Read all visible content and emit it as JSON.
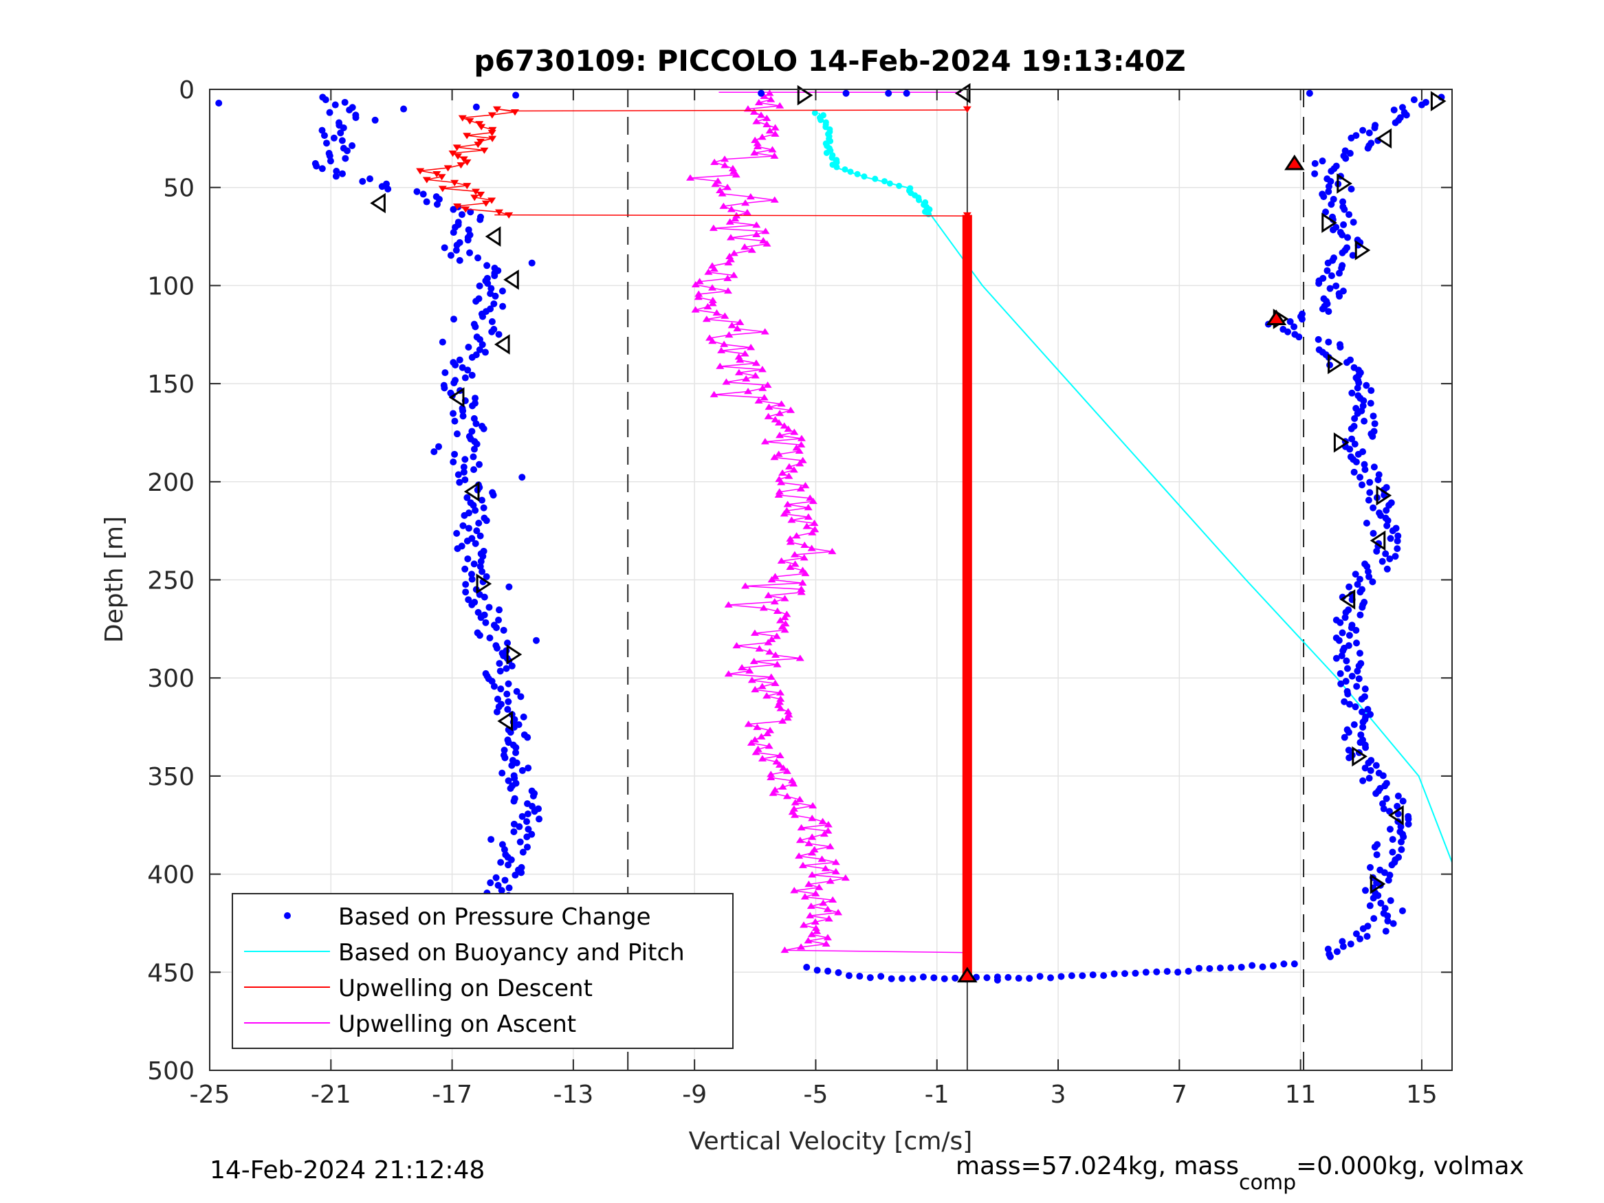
{
  "chart_data": {
    "type": "scatter",
    "title": "p6730109: PICCOLO 14-Feb-2024 19:13:40Z",
    "xlabel": "Vertical Velocity [cm/s]",
    "ylabel": "Depth [m]",
    "xlim": [
      -25,
      16
    ],
    "ylim": [
      0,
      500
    ],
    "y_reversed": true,
    "xticks": [
      -25,
      -21,
      -17,
      -13,
      -9,
      -5,
      -1,
      3,
      7,
      11,
      15
    ],
    "yticks": [
      0,
      50,
      100,
      150,
      200,
      250,
      300,
      350,
      400,
      450,
      500
    ],
    "grid": true,
    "legend_position": "bottom-left",
    "vertical_reference_lines": [
      -11.2,
      11.1
    ],
    "zero_reference_line": 0,
    "legend": [
      "Based on Pressure Change",
      "Based on Buoyancy and Pitch",
      "Upwelling on Descent",
      "Upwelling on Ascent"
    ],
    "series": [
      {
        "name": "Based on Pressure Change",
        "style": "dots",
        "color": "#0000ff",
        "descent": {
          "depth": [
            5,
            10,
            20,
            30,
            40,
            45,
            50,
            55,
            60,
            65,
            70,
            80,
            90,
            100,
            110,
            120,
            130,
            140,
            150,
            160,
            170,
            180,
            190,
            200,
            210,
            220,
            230,
            240,
            250,
            260,
            270,
            280,
            290,
            300,
            310,
            320,
            330,
            340,
            350,
            360,
            370,
            380,
            390,
            400,
            410,
            420,
            430,
            440,
            446
          ],
          "velocity": [
            -20.8,
            -20.5,
            -20.8,
            -20.8,
            -21.2,
            -20.2,
            -18.8,
            -17.8,
            -16.8,
            -16.3,
            -16.8,
            -17.0,
            -16.0,
            -15.6,
            -15.8,
            -15.8,
            -16.0,
            -16.8,
            -16.8,
            -16.6,
            -16.4,
            -16.4,
            -16.5,
            -16.3,
            -16.0,
            -16.2,
            -16.5,
            -16.3,
            -16.2,
            -16.0,
            -15.8,
            -15.6,
            -15.5,
            -15.4,
            -15.2,
            -15.0,
            -14.9,
            -14.9,
            -14.9,
            -14.7,
            -14.6,
            -14.7,
            -15.0,
            -15.2,
            -15.5,
            -15.5,
            -15.3,
            -15.2,
            -15.0
          ]
        },
        "bottom": {
          "depth": [
            448,
            450,
            452,
            453,
            453,
            453,
            452,
            451,
            450,
            448,
            447,
            446,
            445
          ],
          "velocity": [
            -5.3,
            -4.5,
            -3.5,
            -2.5,
            -1.2,
            1.5,
            3.5,
            5.0,
            6.5,
            8.0,
            9.5,
            10.5,
            11.0
          ]
        },
        "ascent": {
          "depth": [
            443,
            430,
            420,
            410,
            400,
            390,
            380,
            370,
            360,
            350,
            340,
            330,
            320,
            310,
            300,
            290,
            280,
            270,
            260,
            250,
            240,
            230,
            220,
            210,
            200,
            190,
            180,
            170,
            160,
            150,
            140,
            130,
            125,
            120,
            110,
            100,
            90,
            80,
            70,
            60,
            50,
            40,
            30,
            20,
            10,
            5
          ],
          "velocity": [
            11.5,
            13.4,
            14.0,
            13.3,
            13.6,
            13.8,
            14.0,
            14.3,
            13.9,
            13.3,
            12.9,
            12.8,
            13.0,
            12.7,
            12.6,
            12.5,
            12.5,
            12.6,
            12.8,
            13.2,
            13.6,
            13.8,
            13.6,
            13.6,
            13.5,
            13.0,
            12.8,
            13.1,
            13.3,
            12.8,
            12.3,
            12.0,
            11.0,
            10.3,
            12.2,
            11.9,
            12.3,
            12.8,
            12.5,
            12.2,
            12.2,
            11.6,
            12.8,
            13.5,
            14.3,
            15.2
          ]
        },
        "markers_open_triangle": {
          "depth": [
            3,
            2,
            6,
            25,
            48,
            58,
            68,
            75,
            82,
            97,
            117,
            130,
            140,
            157,
            180,
            205,
            207,
            230,
            252,
            260,
            288,
            322,
            340,
            370,
            405
          ],
          "velocity": [
            -5.4,
            -0.1,
            15.5,
            13.8,
            12.4,
            -19.4,
            11.9,
            -15.6,
            13.0,
            -15.0,
            10.3,
            -15.3,
            12.1,
            -16.8,
            12.3,
            -16.3,
            13.7,
            13.6,
            -16.0,
            12.6,
            -15.0,
            -15.2,
            12.9,
            14.2,
            13.5
          ]
        },
        "markers_red_triangle": {
          "depth": [
            38,
            117,
            445,
            452
          ],
          "velocity": [
            10.8,
            10.2,
            -14.9,
            0.0
          ]
        }
      },
      {
        "name": "Based on Buoyancy and Pitch",
        "style": "line",
        "color": "#00ffff",
        "depth": [
          12,
          20,
          30,
          40,
          45,
          50,
          55,
          60,
          64,
          100,
          150,
          200,
          250,
          300,
          350,
          394
        ],
        "velocity": [
          -4.9,
          -4.6,
          -4.6,
          -4.3,
          -3.3,
          -2.0,
          -1.6,
          -1.4,
          -1.2,
          0.5,
          3.4,
          6.3,
          9.2,
          12.2,
          14.9,
          16.0
        ]
      },
      {
        "name": "Upwelling on Descent",
        "style": "line-down-triangles",
        "color": "#ff0000",
        "depth": [
          10,
          15,
          20,
          25,
          30,
          35,
          40,
          45,
          50,
          55,
          60,
          64,
          65,
          100,
          150,
          200,
          250,
          300,
          350,
          400,
          440,
          450
        ],
        "velocity": [
          -15.1,
          -16.5,
          -16.3,
          -15.8,
          -16.3,
          -16.8,
          -17.5,
          -17.8,
          -16.8,
          -16.2,
          -16.3,
          -15.6,
          0.0,
          0.0,
          0.0,
          0.0,
          0.0,
          0.0,
          0.0,
          0.0,
          0.0,
          0.0
        ]
      },
      {
        "name": "Upwelling on Ascent",
        "style": "line-up-triangles",
        "color": "#ff00ff",
        "depth": [
          448,
          440,
          430,
          420,
          410,
          400,
          390,
          380,
          370,
          360,
          350,
          340,
          330,
          320,
          310,
          300,
          290,
          280,
          270,
          260,
          250,
          240,
          230,
          220,
          210,
          200,
          190,
          180,
          170,
          160,
          150,
          140,
          130,
          120,
          110,
          100,
          90,
          80,
          70,
          60,
          50,
          40,
          30,
          20,
          10,
          5,
          2
        ],
        "velocity": [
          0.0,
          -5.5,
          -5.0,
          -4.6,
          -5.2,
          -4.5,
          -5.2,
          -4.8,
          -5.3,
          -5.8,
          -6.0,
          -6.5,
          -7.2,
          -6.3,
          -6.6,
          -6.8,
          -6.8,
          -6.5,
          -6.3,
          -6.1,
          -6.0,
          -5.6,
          -5.5,
          -5.3,
          -5.6,
          -5.8,
          -5.8,
          -6.0,
          -6.3,
          -6.5,
          -6.8,
          -7.3,
          -7.8,
          -8.2,
          -8.4,
          -8.5,
          -8.2,
          -7.2,
          -7.2,
          -7.4,
          -7.9,
          -8.3,
          -6.8,
          -6.5,
          -6.8,
          -6.6,
          0.0
        ]
      }
    ]
  },
  "footer": {
    "timestamp": "14-Feb-2024 21:12:48",
    "mass_prefix": "mass=57.024kg, mass",
    "mass_sub": "comp",
    "mass_suffix": "=0.000kg, volmax"
  }
}
